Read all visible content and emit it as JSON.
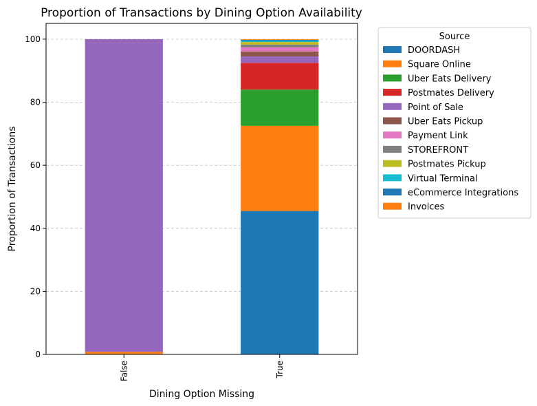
{
  "chart_data": {
    "type": "bar",
    "stacked": true,
    "title": "Proportion of Transactions by Dining Option Availability",
    "xlabel": "Dining Option Missing",
    "ylabel": "Proportion of Transactions",
    "categories": [
      "False",
      "True"
    ],
    "ylim": [
      0,
      105
    ],
    "yticks": [
      0,
      20,
      40,
      60,
      80,
      100
    ],
    "grid": "y-dashed",
    "legend": {
      "title": "Source",
      "placement": "outside-right"
    },
    "series": [
      {
        "name": "DOORDASH",
        "color": "#1f77b4",
        "values": [
          0,
          45.5
        ]
      },
      {
        "name": "Square Online",
        "color": "#ff7f0e",
        "values": [
          0.8,
          27.0
        ]
      },
      {
        "name": "Uber Eats Delivery",
        "color": "#2ca02c",
        "values": [
          0,
          11.5
        ]
      },
      {
        "name": "Postmates Delivery",
        "color": "#d62728",
        "values": [
          0,
          8.5
        ]
      },
      {
        "name": "Point of Sale",
        "color": "#9467bd",
        "values": [
          99.2,
          2.0
        ]
      },
      {
        "name": "Uber Eats Pickup",
        "color": "#8c564b",
        "values": [
          0,
          1.6
        ]
      },
      {
        "name": "Payment Link",
        "color": "#e377c2",
        "values": [
          0,
          1.3
        ]
      },
      {
        "name": "STOREFRONT",
        "color": "#7f7f7f",
        "values": [
          0,
          0.9
        ]
      },
      {
        "name": "Postmates Pickup",
        "color": "#bcbd22",
        "values": [
          0,
          0.8
        ]
      },
      {
        "name": "Virtual Terminal",
        "color": "#17becf",
        "values": [
          0,
          0.4
        ]
      },
      {
        "name": "eCommerce Integrations",
        "color": "#1f77b4",
        "values": [
          0,
          0.3
        ]
      },
      {
        "name": "Invoices",
        "color": "#ff7f0e",
        "values": [
          0,
          0.2
        ]
      }
    ]
  }
}
